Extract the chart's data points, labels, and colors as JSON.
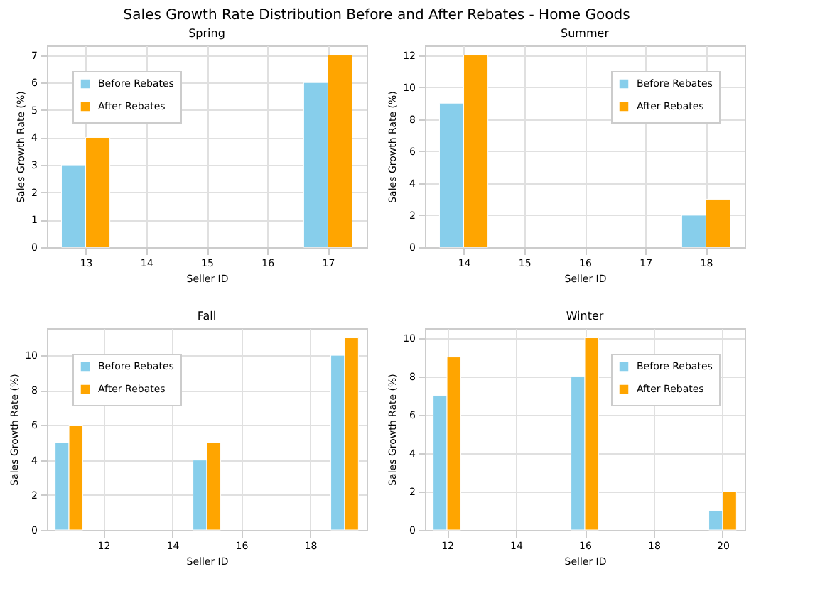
{
  "chart_data": [
    {
      "type": "bar",
      "title": "Spring",
      "annotations": [
        "Sales Growth Rate Distribution Before and After Rebates - Home Goods"
      ],
      "xlabel": "Seller ID",
      "ylabel": "Sales Growth Rate (%)",
      "x": [
        13,
        17
      ],
      "series": [
        {
          "name": "Before Rebates",
          "color": "#87ceeb",
          "values": [
            3,
            6
          ]
        },
        {
          "name": "After Rebates",
          "color": "#ffa500",
          "values": [
            4,
            7
          ]
        }
      ],
      "xlim": [
        12.36,
        17.64
      ],
      "xticks": [
        13,
        14,
        15,
        16,
        17
      ],
      "ylim": [
        0,
        7.35
      ],
      "yticks": [
        0,
        1,
        2,
        3,
        4,
        5,
        6,
        7
      ],
      "grid": true,
      "legend": "top left"
    },
    {
      "type": "bar",
      "title": "Summer",
      "xlabel": "Seller ID",
      "ylabel": "Sales Growth Rate (%)",
      "x": [
        14,
        18
      ],
      "series": [
        {
          "name": "Before Rebates",
          "color": "#87ceeb",
          "values": [
            9,
            2
          ]
        },
        {
          "name": "After Rebates",
          "color": "#ffa500",
          "values": [
            12,
            3
          ]
        }
      ],
      "xlim": [
        13.36,
        18.64
      ],
      "xticks": [
        14,
        15,
        16,
        17,
        18
      ],
      "ylim": [
        0,
        12.6
      ],
      "yticks": [
        0,
        2,
        4,
        6,
        8,
        10,
        12
      ],
      "grid": true,
      "legend": "top right"
    },
    {
      "type": "bar",
      "title": "Fall",
      "xlabel": "Seller ID",
      "ylabel": "Sales Growth Rate (%)",
      "x": [
        11,
        15,
        19
      ],
      "series": [
        {
          "name": "Before Rebates",
          "color": "#87ceeb",
          "values": [
            5,
            4,
            10
          ]
        },
        {
          "name": "After Rebates",
          "color": "#ffa500",
          "values": [
            6,
            5,
            11
          ]
        }
      ],
      "xlim": [
        10.36,
        19.64
      ],
      "xticks": [
        12,
        14,
        16,
        18
      ],
      "ylim": [
        0,
        11.55
      ],
      "yticks": [
        0,
        2,
        4,
        6,
        8,
        10
      ],
      "grid": true,
      "legend": "top left"
    },
    {
      "type": "bar",
      "title": "Winter",
      "xlabel": "Seller ID",
      "ylabel": "Sales Growth Rate (%)",
      "x": [
        12,
        16,
        20
      ],
      "series": [
        {
          "name": "Before Rebates",
          "color": "#87ceeb",
          "values": [
            7,
            8,
            1
          ]
        },
        {
          "name": "After Rebates",
          "color": "#ffa500",
          "values": [
            9,
            10,
            2
          ]
        }
      ],
      "xlim": [
        11.36,
        20.64
      ],
      "xticks": [
        12,
        14,
        16,
        18,
        20
      ],
      "ylim": [
        0,
        10.5
      ],
      "yticks": [
        0,
        2,
        4,
        6,
        8,
        10
      ],
      "grid": true,
      "legend": "top right"
    }
  ]
}
